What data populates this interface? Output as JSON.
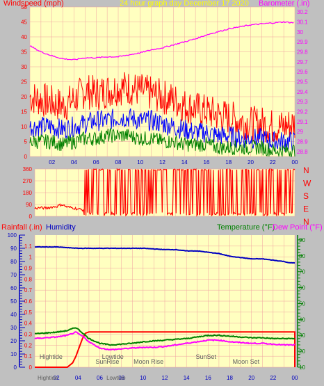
{
  "colors": {
    "background": "#c0c0c0",
    "plot_bg": "#ffffc0",
    "grid": "#f0a0a0",
    "wind_gust": "#ff0000",
    "wind_avg": "#0000ff",
    "wind_low": "#008000",
    "barometer": "#ff00ff",
    "direction": "#ff0000",
    "rainfall": "#ff0000",
    "humidity": "#0000c0",
    "temperature": "#008000",
    "dewpoint": "#ff00ff",
    "header_date": "#ffff00",
    "almanac_text": "#606060"
  },
  "header": {
    "left_title": "Windspeed (mph)",
    "center_title": "24 hour graph day   December 17 2020",
    "right_title": "Barometer (.in)"
  },
  "chart_data": [
    {
      "type": "line",
      "x_ticks": [
        "02",
        "04",
        "06",
        "08",
        "10",
        "12",
        "14",
        "16",
        "18",
        "20",
        "22",
        "00"
      ],
      "y_left": {
        "label": "Windspeed (mph)",
        "ylim": [
          0,
          50
        ],
        "ticks": [
          "0",
          "5",
          "10",
          "15",
          "20",
          "25",
          "30",
          "35",
          "40",
          "45",
          "50"
        ]
      },
      "y_right": {
        "label": "Barometer (.in)",
        "ylim": [
          28.75,
          30.25
        ],
        "ticks": [
          "28.8",
          "28.9",
          "29",
          "29.1",
          "29.2",
          "29.3",
          "29.4",
          "29.5",
          "29.6",
          "29.7",
          "29.8",
          "29.9",
          "30",
          "30.1",
          "30.2"
        ]
      },
      "series": [
        {
          "key": "gust",
          "axis": "left",
          "x": [
            0,
            1,
            2,
            3,
            4,
            5,
            6,
            7,
            8,
            9,
            10,
            11,
            12,
            13,
            14,
            15,
            16,
            17,
            18,
            19,
            20,
            21,
            22,
            23,
            24
          ],
          "values": [
            20,
            19,
            18,
            17,
            19,
            22,
            21,
            22,
            23,
            23,
            22,
            21,
            20,
            19,
            17,
            16,
            15,
            14,
            13,
            12,
            11,
            11,
            10,
            10,
            11
          ]
        },
        {
          "key": "average",
          "axis": "left",
          "x": [
            0,
            1,
            2,
            3,
            4,
            5,
            6,
            7,
            8,
            9,
            10,
            11,
            12,
            13,
            14,
            15,
            16,
            17,
            18,
            19,
            20,
            21,
            22,
            23,
            24
          ],
          "values": [
            10,
            10,
            10,
            9,
            10,
            11,
            12,
            12,
            13,
            13,
            12,
            12,
            11,
            10,
            9,
            8,
            8,
            7,
            7,
            6,
            6,
            6,
            5,
            5,
            5
          ]
        },
        {
          "key": "low",
          "axis": "left",
          "x": [
            0,
            1,
            2,
            3,
            4,
            5,
            6,
            7,
            8,
            9,
            10,
            11,
            12,
            13,
            14,
            15,
            16,
            17,
            18,
            19,
            20,
            21,
            22,
            23,
            24
          ],
          "values": [
            5,
            5,
            5,
            4,
            5,
            6,
            6,
            7,
            7,
            7,
            6,
            6,
            5,
            5,
            4,
            4,
            4,
            3,
            3,
            3,
            3,
            3,
            2,
            2,
            2
          ]
        },
        {
          "key": "barometer",
          "axis": "right",
          "x": [
            0,
            1,
            2,
            3,
            4,
            5,
            6,
            7,
            8,
            9,
            10,
            11,
            12,
            13,
            14,
            15,
            16,
            17,
            18,
            19,
            20,
            21,
            22,
            23,
            24
          ],
          "values": [
            29.86,
            29.8,
            29.76,
            29.73,
            29.72,
            29.74,
            29.74,
            29.75,
            29.75,
            29.77,
            29.79,
            29.82,
            29.84,
            29.87,
            29.9,
            29.93,
            29.97,
            30.0,
            30.03,
            30.05,
            30.07,
            30.08,
            30.09,
            30.1,
            30.09
          ]
        }
      ]
    },
    {
      "type": "line",
      "x_ticks": [],
      "y_left": {
        "label": "",
        "ylim": [
          0,
          360
        ],
        "ticks": [
          "0",
          "90",
          "180",
          "270",
          "360"
        ]
      },
      "direction_labels": [
        "N",
        "W",
        "S",
        "E",
        "N"
      ],
      "series": [
        {
          "key": "direction",
          "axis": "left",
          "x": [
            0,
            0.5,
            1,
            1.5,
            2,
            2.5,
            3,
            3.5,
            4,
            4.5,
            5,
            5.5,
            6,
            6.5,
            7,
            7.5,
            8,
            8.5,
            9,
            9.5,
            10,
            10.5,
            11,
            11.5,
            12,
            12.5,
            13,
            13.5,
            14,
            14.5,
            15,
            15.5,
            16,
            16.5,
            17,
            17.5,
            18,
            18.5,
            19,
            19.5,
            20,
            20.5,
            21,
            21.5,
            22,
            22.5,
            23,
            23.5,
            24
          ],
          "values": [
            60,
            65,
            62,
            70,
            75,
            90,
            70,
            65,
            55,
            50,
            20,
            345,
            15,
            340,
            10,
            20,
            350,
            15,
            30,
            345,
            20,
            10,
            350,
            25,
            15,
            340,
            20,
            350,
            10,
            30,
            345,
            20,
            15,
            350,
            10,
            25,
            345,
            20,
            355,
            15,
            10,
            340,
            20,
            350,
            15,
            345,
            10,
            20,
            15
          ]
        }
      ]
    },
    {
      "type": "line",
      "x_ticks": [
        "02",
        "04",
        "06",
        "08",
        "10",
        "12",
        "14",
        "16",
        "18",
        "20",
        "22",
        "00"
      ],
      "y_far_left": {
        "label": "Rainfall (.in)",
        "ylim": [
          0,
          100
        ],
        "ticks": [
          "0",
          "10",
          "20",
          "30",
          "40",
          "50",
          "60",
          "70",
          "80",
          "90",
          "100"
        ]
      },
      "y_left": {
        "label": "Humidity",
        "ylim": [
          0,
          1.2
        ],
        "ticks": [
          "0",
          "0.1",
          "0.2",
          "0.3",
          "0.4",
          "0.5",
          "0.6",
          "0.7",
          "0.8",
          "0.9",
          "1",
          "1.1"
        ]
      },
      "y_right": {
        "label": "Temperature (°F)",
        "label2": "Dew Point (°F)",
        "ylim": [
          10,
          93
        ],
        "ticks": [
          "10",
          "20",
          "30",
          "40",
          "50",
          "60",
          "70",
          "80",
          "90"
        ]
      },
      "series": [
        {
          "key": "humidity",
          "axis": "far_left",
          "x": [
            0,
            2,
            4,
            6,
            8,
            10,
            12,
            13,
            14,
            15,
            16,
            17,
            18,
            19,
            20,
            21,
            22,
            23,
            23.5,
            24
          ],
          "values": [
            91,
            91,
            90,
            90,
            90,
            90,
            89,
            89,
            88,
            88,
            87,
            86,
            84,
            83,
            82,
            82,
            81,
            80,
            79,
            79
          ]
        },
        {
          "key": "rainfall",
          "axis": "left",
          "x": [
            0,
            2,
            3,
            3.5,
            3.8,
            4.1,
            4.4,
            4.7,
            5,
            24,
            24
          ],
          "values": [
            0,
            0,
            0,
            0.04,
            0.1,
            0.18,
            0.26,
            0.31,
            0.32,
            0.32,
            0
          ]
        },
        {
          "key": "temperature",
          "axis": "right",
          "x": [
            0,
            1,
            2,
            3,
            3.8,
            4.5,
            5,
            6,
            7,
            8,
            9,
            10,
            11,
            12,
            13,
            14,
            15,
            16,
            17,
            18,
            19,
            20,
            21,
            22,
            23,
            24
          ],
          "values": [
            31,
            31.5,
            32,
            33,
            35,
            31,
            28,
            25,
            24,
            24.5,
            25,
            26,
            26.5,
            27,
            27.5,
            28,
            29,
            30,
            30,
            29.5,
            29,
            28.5,
            28.5,
            28,
            28,
            28
          ]
        },
        {
          "key": "dewpoint",
          "axis": "right",
          "x": [
            0,
            1,
            2,
            3,
            3.8,
            4.5,
            5,
            6,
            7,
            8,
            9,
            10,
            11,
            12,
            13,
            14,
            15,
            16,
            17,
            18,
            19,
            20,
            21,
            22,
            23,
            24
          ],
          "values": [
            28,
            28.5,
            29,
            30,
            32,
            29,
            26,
            22,
            21,
            21.5,
            22,
            22.5,
            22.5,
            23,
            24,
            25,
            26,
            27,
            27,
            26,
            25.5,
            25,
            25,
            24.5,
            24,
            24
          ]
        }
      ],
      "almanac": [
        {
          "label": "Hightide",
          "hour": 1.5
        },
        {
          "label": "SunRise",
          "hour": 6.7
        },
        {
          "label": "Lowtide",
          "hour": 7.2
        },
        {
          "label": "Moon Rise",
          "hour": 10.5
        },
        {
          "label": "SunSet",
          "hour": 15.8
        },
        {
          "label": "Moon Set",
          "hour": 19.5
        }
      ],
      "bottom_labels": [
        {
          "label": "Hightide",
          "hour": 1.2
        },
        {
          "label": "Lowtide",
          "hour": 7.5
        }
      ]
    }
  ]
}
